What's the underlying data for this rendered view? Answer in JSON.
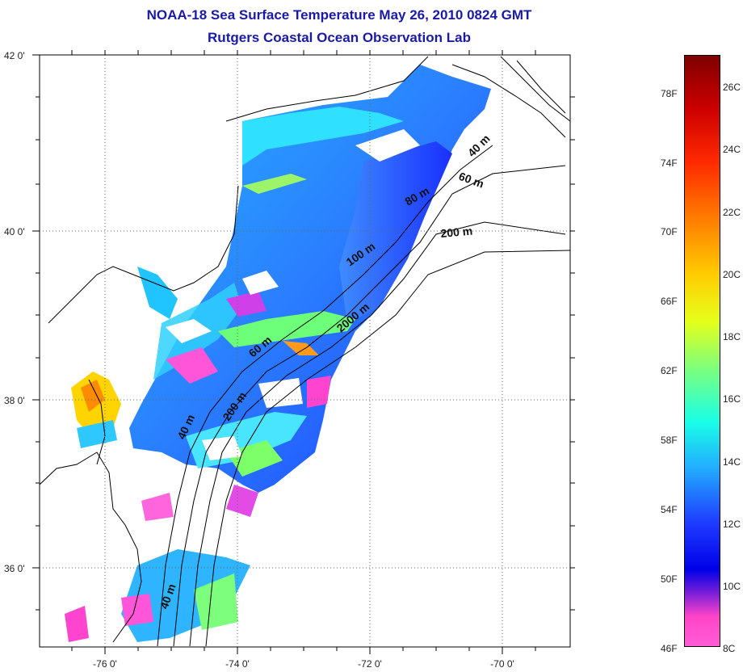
{
  "title_line1": "NOAA-18 Sea Surface Temperature May 26, 2010 0824 GMT",
  "title_line2": "Rutgers Coastal Ocean Observation Lab",
  "map": {
    "lat_labels": [
      "42 0'",
      "40 0'",
      "38 0'",
      "36 0'"
    ],
    "lon_labels": [
      "-76 0'",
      "-74 0'",
      "-72 0'",
      "-70 0'"
    ],
    "contour_labels": [
      "40 m",
      "60 m",
      "80 m",
      "200 m",
      "100 m",
      "2000 m",
      "60 m",
      "200 m",
      "40 m",
      "40 m"
    ]
  },
  "colorbar": {
    "fahrenheit_labels": [
      "78F",
      "74F",
      "70F",
      "66F",
      "62F",
      "58F",
      "54F",
      "50F",
      "46F"
    ],
    "celsius_labels": [
      "26C",
      "24C",
      "22C",
      "20C",
      "18C",
      "16C",
      "14C",
      "12C",
      "10C",
      "8C"
    ],
    "colors": [
      "#800000",
      "#cc0000",
      "#ff7700",
      "#ffcc00",
      "#7dff7d",
      "#19ffe6",
      "#22aaff",
      "#0000e8",
      "#7a1fd8",
      "#ff5cd6"
    ]
  }
}
